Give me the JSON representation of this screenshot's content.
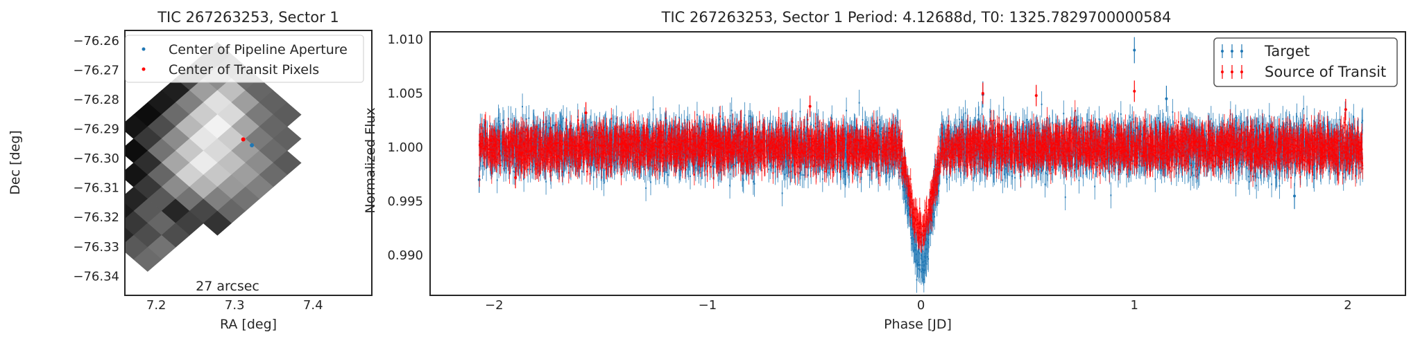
{
  "chart_data": [
    {
      "type": "heatmap",
      "title": "TIC 267263253, Sector 1",
      "xlabel": "RA [deg]",
      "ylabel": "Dec [deg]",
      "xlim": [
        7.16,
        7.475
      ],
      "ylim": [
        -76.3465,
        -76.2565
      ],
      "xticks": [
        "7.2",
        "7.3",
        "7.4"
      ],
      "xtick_values": [
        7.2,
        7.3,
        7.4
      ],
      "yticks": [
        "−76.26",
        "−76.27",
        "−76.28",
        "−76.29",
        "−76.30",
        "−76.31",
        "−76.32",
        "−76.33",
        "−76.34"
      ],
      "ytick_values": [
        -76.26,
        -76.27,
        -76.28,
        -76.29,
        -76.3,
        -76.31,
        -76.32,
        -76.33,
        -76.34
      ],
      "scale_label": "27 arcsec",
      "legend_position": "top-right",
      "legend": [
        {
          "name": "Center of Pipeline Aperture",
          "color": "#1f77b4"
        },
        {
          "name": "Center of Transit Pixels",
          "color": "#ff0000"
        }
      ],
      "points": [
        {
          "series": "Center of Pipeline Aperture",
          "x": 7.322,
          "y": -76.2955
        },
        {
          "series": "Center of Transit Pixels",
          "x": 7.311,
          "y": -76.2935
        }
      ],
      "grid": {
        "grid_origin": [
          7.278,
          -76.2605
        ],
        "grid_step_col": [
          0.0178,
          -0.0041
        ],
        "grid_step_row": [
          -0.0178,
          -0.0041
        ],
        "brightness_rows": [
          [
            0.3,
            0.36,
            0.42,
            0.4,
            0.38,
            0.36
          ],
          [
            0.32,
            0.55,
            0.75,
            0.62,
            0.48,
            0.4,
            0.38
          ],
          [
            0.28,
            0.62,
            0.88,
            0.85,
            0.65,
            0.48,
            0.42,
            0.35
          ],
          [
            0.12,
            0.5,
            0.8,
            0.95,
            0.8,
            0.62,
            0.55,
            0.42
          ],
          [
            0.1,
            0.42,
            0.72,
            0.9,
            0.85,
            0.75,
            0.62,
            0.5
          ],
          [
            0.05,
            0.3,
            0.55,
            0.78,
            0.92,
            0.78,
            0.6,
            0.45
          ],
          [
            0.08,
            0.22,
            0.45,
            0.65,
            0.82,
            0.7,
            0.5,
            0.4
          ],
          [
            null,
            0.05,
            0.18,
            0.4,
            0.55,
            0.45,
            0.28,
            0.2
          ],
          [
            null,
            null,
            0.08,
            0.22,
            0.35,
            0.15,
            0.25
          ],
          [
            null,
            null,
            null,
            0.14,
            0.35,
            0.4,
            0.3
          ],
          [
            null,
            null,
            null,
            0.1,
            0.22,
            0.3,
            0.45
          ],
          [
            null,
            null,
            null,
            0.05,
            0.15,
            0.35,
            0.42
          ]
        ]
      }
    },
    {
      "type": "scatter",
      "title": "TIC 267263253, Sector 1 Period: 4.12688d, T0: 1325.7829700000584",
      "xlabel": "Phase [JD]",
      "ylabel": "Normalized Flux",
      "xlim": [
        -2.3,
        2.27
      ],
      "ylim": [
        0.9863,
        1.0107
      ],
      "xticks": [
        "−2",
        "−1",
        "0",
        "1",
        "2"
      ],
      "xtick_values": [
        -2,
        -1,
        0,
        1,
        2
      ],
      "yticks": [
        "0.990",
        "0.995",
        "1.000",
        "1.005",
        "1.010"
      ],
      "ytick_values": [
        0.99,
        0.995,
        1.0,
        1.005,
        1.01
      ],
      "legend_position": "top-right",
      "error_bars": true,
      "series": [
        {
          "name": "Target",
          "color": "#1f77b4",
          "phase_range": [
            -2.07,
            2.07
          ],
          "baseline_flux": 1.0,
          "scatter_sigma": 0.0011,
          "transit": {
            "center": 0.0,
            "full_width": 0.2,
            "depth": 0.0105,
            "ingress": 0.055
          },
          "outliers": [
            {
              "x": 1.0,
              "y": 1.009
            },
            {
              "x": 1.75,
              "y": 0.9955
            },
            {
              "x": 0.29,
              "y": 1.0049
            },
            {
              "x": 1.15,
              "y": 1.0045
            },
            {
              "x": -2.07,
              "y": 0.997
            }
          ]
        },
        {
          "name": "Source of Transit",
          "color": "#ff0000",
          "phase_range": [
            -2.07,
            2.07
          ],
          "baseline_flux": 1.0,
          "scatter_sigma": 0.0009,
          "transit": {
            "center": 0.0,
            "full_width": 0.2,
            "depth": 0.008,
            "ingress": 0.055
          },
          "outliers": [
            {
              "x": 1.0,
              "y": 1.0052
            },
            {
              "x": 0.54,
              "y": 1.0048
            },
            {
              "x": 0.29,
              "y": 1.005
            },
            {
              "x": -1.57,
              "y": 1.0032
            },
            {
              "x": 1.99,
              "y": 1.0035
            },
            {
              "x": -0.52,
              "y": 1.0038
            },
            {
              "x": -1.9,
              "y": 0.9972
            }
          ]
        }
      ]
    }
  ]
}
